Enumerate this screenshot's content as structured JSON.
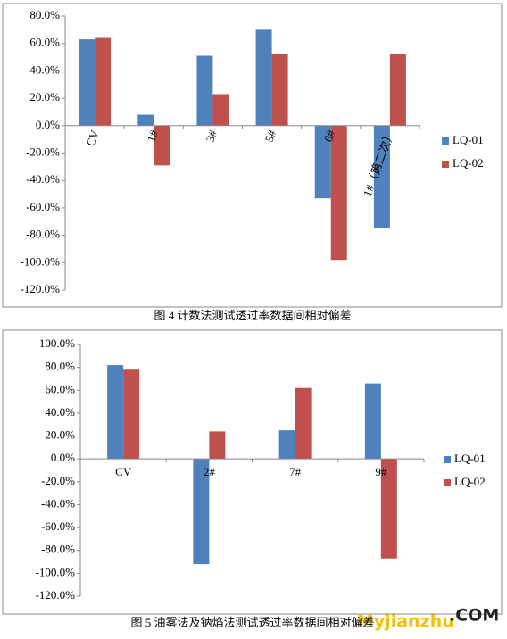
{
  "chart_data": [
    {
      "type": "bar",
      "caption": "图 4  计数法测试透过率数据间相对偏差",
      "categories": [
        "CV",
        "1#",
        "3#",
        "5#",
        "6#",
        "1#（第二次）"
      ],
      "series": [
        {
          "name": "LQ-01",
          "color": "#4f81bd",
          "values": [
            63,
            8,
            51,
            70,
            -53,
            -75
          ]
        },
        {
          "name": "LQ-02",
          "color": "#c0504d",
          "values": [
            64,
            -29,
            23,
            52,
            -98,
            52
          ]
        }
      ],
      "ylim": [
        -120,
        80
      ],
      "yticks": [
        {
          "value": -120,
          "label": "-120.0%"
        },
        {
          "value": -100,
          "label": "-100.0%"
        },
        {
          "value": -80,
          "label": "-80.0%"
        },
        {
          "value": -60,
          "label": "-60.0%"
        },
        {
          "value": -40,
          "label": "-40.0%"
        },
        {
          "value": -20,
          "label": "-20.0%"
        },
        {
          "value": 0,
          "label": "0.0%"
        },
        {
          "value": 20,
          "label": "20.0%"
        },
        {
          "value": 40,
          "label": "40.0%"
        },
        {
          "value": 60,
          "label": "60.0%"
        },
        {
          "value": 80,
          "label": "80.0%"
        }
      ],
      "legend": "right"
    },
    {
      "type": "bar",
      "caption": "图 5  油雾法及钠焰法测试透过率数据间相对偏差",
      "categories": [
        "CV",
        "2#",
        "7#",
        "9#"
      ],
      "series": [
        {
          "name": "LQ-01",
          "color": "#4f81bd",
          "values": [
            82,
            -92,
            25,
            66
          ]
        },
        {
          "name": "LQ-02",
          "color": "#c0504d",
          "values": [
            78,
            24,
            62,
            -87
          ]
        }
      ],
      "ylim": [
        -120,
        100
      ],
      "yticks": [
        {
          "value": -120,
          "label": "-120.0%"
        },
        {
          "value": -100,
          "label": "-100.0%"
        },
        {
          "value": -80,
          "label": "-80.0%"
        },
        {
          "value": -60,
          "label": "-60.0%"
        },
        {
          "value": -40,
          "label": "-40.0%"
        },
        {
          "value": -20,
          "label": "-20.0%"
        },
        {
          "value": 0,
          "label": "0.0%"
        },
        {
          "value": 20,
          "label": "20.0%"
        },
        {
          "value": 40,
          "label": "40.0%"
        },
        {
          "value": 60,
          "label": "60.0%"
        },
        {
          "value": 80,
          "label": "80.0%"
        },
        {
          "value": 100,
          "label": "100.0%"
        }
      ],
      "legend": "right"
    }
  ],
  "watermark": [
    "Myjianzhu",
    ".COM"
  ]
}
